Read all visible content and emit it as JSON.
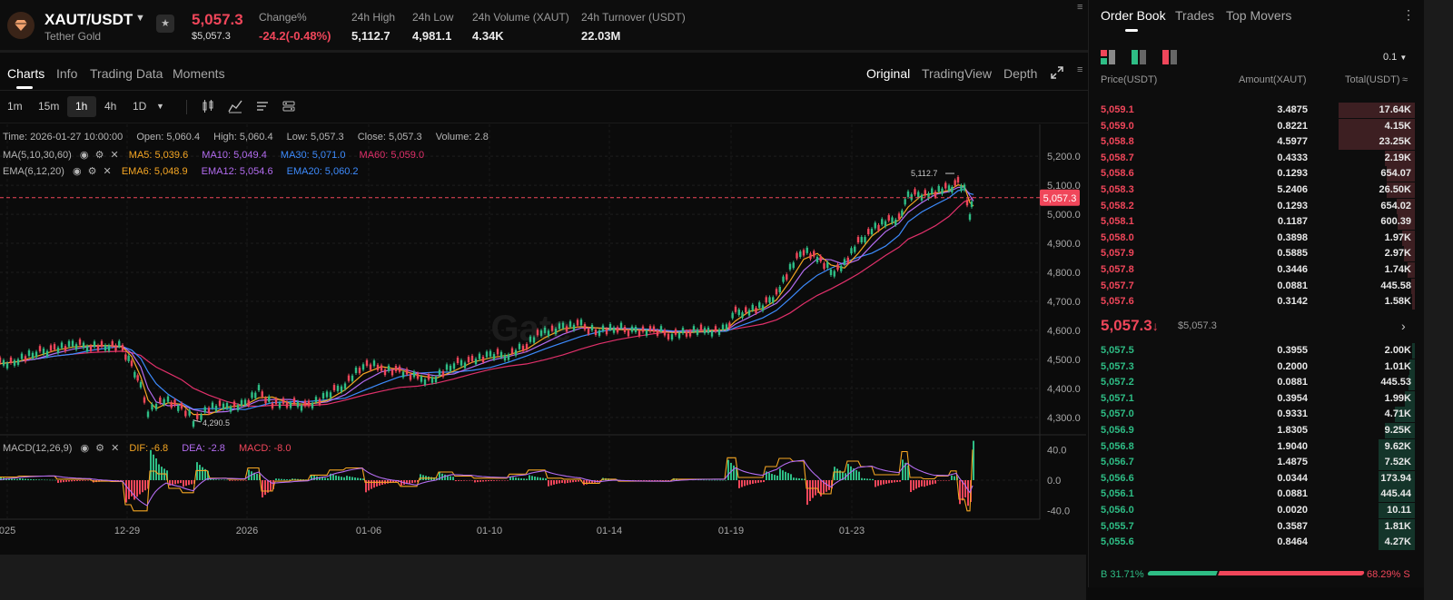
{
  "ticker": {
    "pair": "XAUT/USDT",
    "name": "Tether Gold",
    "last_price": "5,057.3",
    "last_price_usd": "$5,057.3",
    "stats": [
      {
        "label": "Change%",
        "value": "-24.2(-0.48%)",
        "negative": true
      },
      {
        "label": "24h High",
        "value": "5,112.7"
      },
      {
        "label": "24h Low",
        "value": "4,981.1"
      },
      {
        "label": "24h Volume (XAUT)",
        "value": "4.34K"
      },
      {
        "label": "24h Turnover (USDT)",
        "value": "22.03M"
      }
    ]
  },
  "tabs": {
    "left": [
      "Charts",
      "Info",
      "Trading Data",
      "Moments"
    ],
    "right": [
      "Original",
      "TradingView",
      "Depth"
    ],
    "active_left": "Charts",
    "active_right": "Original"
  },
  "intervals": [
    "1m",
    "15m",
    "1h",
    "4h",
    "1D"
  ],
  "active_interval": "1h",
  "legend": {
    "info": [
      "Time: 2026-01-27 10:00:00",
      "Open: 5,060.4",
      "High: 5,060.4",
      "Low: 5,057.3",
      "Close: 5,057.3",
      "Volume: 2.8"
    ],
    "ma_label": "MA(5,10,30,60)",
    "ma_values": [
      {
        "text": "MA5: 5,039.6",
        "color": "#f5a623"
      },
      {
        "text": "MA10: 5,049.4",
        "color": "#b36cf0"
      },
      {
        "text": "MA30: 5,071.0",
        "color": "#3d8bfd"
      },
      {
        "text": "MA60: 5,059.0",
        "color": "#e0306a"
      }
    ],
    "ema_label": "EMA(6,12,20)",
    "ema_values": [
      {
        "text": "EMA6: 5,048.9",
        "color": "#f5a623"
      },
      {
        "text": "EMA12: 5,054.6",
        "color": "#b36cf0"
      },
      {
        "text": "EMA20: 5,060.2",
        "color": "#3d8bfd"
      }
    ],
    "macd_label": "MACD(12,26,9)",
    "macd_values": [
      {
        "text": "DIF: -6.8",
        "color": "#f5a623"
      },
      {
        "text": "DEA: -2.8",
        "color": "#b36cf0"
      },
      {
        "text": "MACD: -8.0",
        "color": "#f0465a"
      }
    ]
  },
  "chart_data": {
    "type": "line",
    "title": "",
    "watermark": "Gate",
    "x_tick_labels": [
      "025",
      "12-29",
      "2026",
      "01-06",
      "01-10",
      "01-14",
      "01-19",
      "01-23"
    ],
    "y_tick_labels": [
      "5,200.0",
      "5,100.0",
      "5,000.0",
      "4,900.0",
      "4,800.0",
      "4,700.0",
      "4,600.0",
      "4,500.0",
      "4,400.0",
      "4,300.0"
    ],
    "ylim": [
      4240,
      5310
    ],
    "series": [
      {
        "name": "Close",
        "x": [
          0,
          20,
          40,
          60,
          80,
          100,
          120,
          135,
          145,
          155,
          163,
          172,
          185,
          200,
          213,
          230,
          250,
          270,
          285,
          300,
          320,
          340,
          360,
          380,
          400,
          420,
          440,
          460,
          480,
          500,
          520,
          540,
          560,
          580,
          600,
          620,
          640,
          660,
          680,
          700,
          720,
          740,
          760,
          780,
          800,
          810,
          825,
          840,
          855,
          870,
          885,
          900,
          915,
          930,
          945,
          960,
          975,
          990,
          1000,
          1015,
          1030,
          1045,
          1055,
          1062,
          1068,
          1072
        ],
        "values": [
          4485,
          4500,
          4520,
          4540,
          4545,
          4550,
          4545,
          4540,
          4480,
          4400,
          4320,
          4340,
          4360,
          4330,
          4290,
          4330,
          4340,
          4345,
          4390,
          4350,
          4345,
          4345,
          4370,
          4420,
          4480,
          4470,
          4460,
          4430,
          4440,
          4480,
          4500,
          4510,
          4520,
          4550,
          4600,
          4610,
          4615,
          4600,
          4605,
          4600,
          4595,
          4590,
          4595,
          4600,
          4605,
          4660,
          4670,
          4680,
          4730,
          4810,
          4880,
          4850,
          4800,
          4830,
          4900,
          4950,
          4970,
          4990,
          5060,
          5070,
          5075,
          5090,
          5112.7,
          5080,
          5000,
          5057.3
        ]
      }
    ],
    "markers": {
      "high": "5,112.7",
      "low": "4,290.5",
      "current": "5,057.3"
    },
    "macd": {
      "y_tick_labels": [
        "40.0",
        "0.0",
        "-40.0"
      ],
      "ylim": [
        -48,
        48
      ]
    }
  },
  "orderbook": {
    "tabs": [
      "Order Book",
      "Trades",
      "Top Movers"
    ],
    "precision": "0.1",
    "headers": {
      "price": "Price(USDT)",
      "amount": "Amount(XAUT)",
      "total": "Total(USDT)"
    },
    "asks": [
      {
        "price": "5,059.1",
        "amount": "3.4875",
        "total": "17.64K",
        "depth": 0.76
      },
      {
        "price": "5,059.0",
        "amount": "0.8221",
        "total": "4.15K",
        "depth": 0.76
      },
      {
        "price": "5,058.8",
        "amount": "4.5977",
        "total": "23.25K",
        "depth": 0.76
      },
      {
        "price": "5,058.7",
        "amount": "0.4333",
        "total": "2.19K",
        "depth": 0.3
      },
      {
        "price": "5,058.6",
        "amount": "0.1293",
        "total": "654.07",
        "depth": 0.28
      },
      {
        "price": "5,058.3",
        "amount": "5.2406",
        "total": "26.50K",
        "depth": 0.28
      },
      {
        "price": "5,058.2",
        "amount": "0.1293",
        "total": "654.02",
        "depth": 0.18
      },
      {
        "price": "5,058.1",
        "amount": "0.1187",
        "total": "600.39",
        "depth": 0.17
      },
      {
        "price": "5,058.0",
        "amount": "0.3898",
        "total": "1.97K",
        "depth": 0.13
      },
      {
        "price": "5,057.9",
        "amount": "0.5885",
        "total": "2.97K",
        "depth": 0.11
      },
      {
        "price": "5,057.8",
        "amount": "0.3446",
        "total": "1.74K",
        "depth": 0.07
      },
      {
        "price": "5,057.7",
        "amount": "0.0881",
        "total": "445.58",
        "depth": 0.04
      },
      {
        "price": "5,057.6",
        "amount": "0.3142",
        "total": "1.58K",
        "depth": 0.03
      }
    ],
    "mid_price": "5,057.3",
    "mid_arrow": "↓",
    "mid_usd": "$5,057.3",
    "bids": [
      {
        "price": "5,057.5",
        "amount": "0.3955",
        "total": "2.00K",
        "depth": 0.03
      },
      {
        "price": "5,057.3",
        "amount": "0.2000",
        "total": "1.01K",
        "depth": 0.05
      },
      {
        "price": "5,057.2",
        "amount": "0.0881",
        "total": "445.53",
        "depth": 0.06
      },
      {
        "price": "5,057.1",
        "amount": "0.3954",
        "total": "1.99K",
        "depth": 0.1
      },
      {
        "price": "5,057.0",
        "amount": "0.9331",
        "total": "4.71K",
        "depth": 0.2
      },
      {
        "price": "5,056.9",
        "amount": "1.8305",
        "total": "9.25K",
        "depth": 0.3
      },
      {
        "price": "5,056.8",
        "amount": "1.9040",
        "total": "9.62K",
        "depth": 0.36
      },
      {
        "price": "5,056.7",
        "amount": "1.4875",
        "total": "7.52K",
        "depth": 0.36
      },
      {
        "price": "5,056.6",
        "amount": "0.0344",
        "total": "173.94",
        "depth": 0.36
      },
      {
        "price": "5,056.1",
        "amount": "0.0881",
        "total": "445.44",
        "depth": 0.36
      },
      {
        "price": "5,056.0",
        "amount": "0.0020",
        "total": "10.11",
        "depth": 0.36
      },
      {
        "price": "5,055.7",
        "amount": "0.3587",
        "total": "1.81K",
        "depth": 0.36
      },
      {
        "price": "5,055.6",
        "amount": "0.8464",
        "total": "4.27K",
        "depth": 0.36
      }
    ],
    "buy_ratio": "B 31.71%",
    "sell_ratio": "68.29% S"
  }
}
